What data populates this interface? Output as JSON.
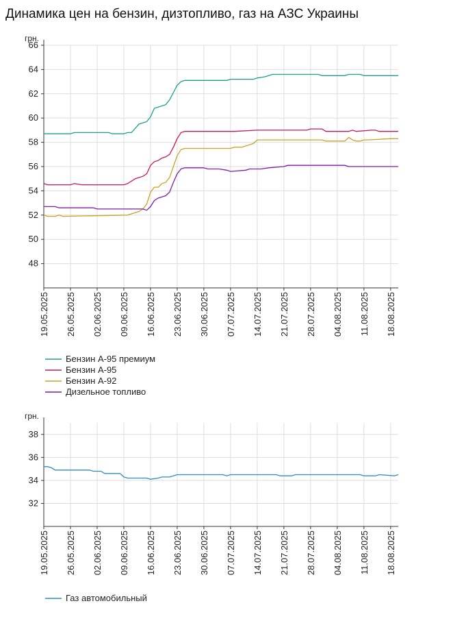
{
  "title": "Динамика цен на бензин, дизтопливо, газ на АЗС Украины",
  "chart_data": [
    {
      "type": "line",
      "ylabel": "грн.",
      "ylim": [
        46,
        66
      ],
      "yticks": [
        48,
        50,
        52,
        54,
        56,
        58,
        60,
        62,
        64,
        66
      ],
      "x_range": [
        "2025-05-19",
        "2025-08-20"
      ],
      "xticks": [
        "19.05.2025",
        "26.05.2025",
        "02.06.2025",
        "09.06.2025",
        "16.06.2025",
        "23.06.2025",
        "30.06.2025",
        "07.07.2025",
        "14.07.2025",
        "21.07.2025",
        "28.07.2025",
        "04.08.2025",
        "11.08.2025",
        "18.08.2025"
      ],
      "grid": true,
      "legend_position": "bottom-left",
      "series": [
        {
          "name": "Бензин А-95 премиум",
          "color": "#1a9e8c",
          "x": [
            "2025-05-19",
            "2025-05-26",
            "2025-05-27",
            "2025-06-05",
            "2025-06-06",
            "2025-06-09",
            "2025-06-10",
            "2025-06-11",
            "2025-06-13",
            "2025-06-14",
            "2025-06-15",
            "2025-06-16",
            "2025-06-17",
            "2025-06-18",
            "2025-06-19",
            "2025-06-20",
            "2025-06-21",
            "2025-06-22",
            "2025-06-23",
            "2025-06-24",
            "2025-06-25",
            "2025-07-06",
            "2025-07-07",
            "2025-07-13",
            "2025-07-14",
            "2025-07-16",
            "2025-07-18",
            "2025-07-30",
            "2025-07-31",
            "2025-08-06",
            "2025-08-07",
            "2025-08-10",
            "2025-08-11",
            "2025-08-20"
          ],
          "values": [
            58.7,
            58.7,
            58.8,
            58.8,
            58.7,
            58.7,
            58.8,
            58.8,
            59.5,
            59.6,
            59.7,
            60.1,
            60.8,
            60.9,
            61.0,
            61.1,
            61.5,
            62.1,
            62.7,
            63.0,
            63.1,
            63.1,
            63.2,
            63.2,
            63.3,
            63.4,
            63.6,
            63.6,
            63.5,
            63.5,
            63.6,
            63.6,
            63.5,
            63.5
          ]
        },
        {
          "name": "Бензин А-95",
          "color": "#c2185b",
          "x": [
            "2025-05-19",
            "2025-05-20",
            "2025-05-26",
            "2025-05-27",
            "2025-05-29",
            "2025-06-09",
            "2025-06-10",
            "2025-06-12",
            "2025-06-14",
            "2025-06-15",
            "2025-06-16",
            "2025-06-17",
            "2025-06-18",
            "2025-06-19",
            "2025-06-20",
            "2025-06-21",
            "2025-06-22",
            "2025-06-23",
            "2025-06-24",
            "2025-06-25",
            "2025-07-07",
            "2025-07-08",
            "2025-07-14",
            "2025-07-27",
            "2025-07-28",
            "2025-07-31",
            "2025-08-01",
            "2025-08-07",
            "2025-08-08",
            "2025-08-09",
            "2025-08-13",
            "2025-08-14",
            "2025-08-15",
            "2025-08-20"
          ],
          "values": [
            54.6,
            54.5,
            54.5,
            54.6,
            54.5,
            54.5,
            54.6,
            55.0,
            55.2,
            55.4,
            56.1,
            56.4,
            56.5,
            56.7,
            56.8,
            57.0,
            57.6,
            58.3,
            58.8,
            58.9,
            58.9,
            58.9,
            59.0,
            59.0,
            59.1,
            59.1,
            58.9,
            58.9,
            59.0,
            58.9,
            59.0,
            59.0,
            58.9,
            58.9
          ]
        },
        {
          "name": "Бензин А-92",
          "color": "#c9a227",
          "x": [
            "2025-05-19",
            "2025-05-20",
            "2025-05-22",
            "2025-05-23",
            "2025-05-24",
            "2025-06-10",
            "2025-06-11",
            "2025-06-13",
            "2025-06-14",
            "2025-06-15",
            "2025-06-16",
            "2025-06-17",
            "2025-06-18",
            "2025-06-19",
            "2025-06-20",
            "2025-06-21",
            "2025-06-22",
            "2025-06-23",
            "2025-06-24",
            "2025-06-25",
            "2025-07-02",
            "2025-07-03",
            "2025-07-07",
            "2025-07-08",
            "2025-07-10",
            "2025-07-13",
            "2025-07-14",
            "2025-07-31",
            "2025-08-01",
            "2025-08-06",
            "2025-08-07",
            "2025-08-08",
            "2025-08-09",
            "2025-08-10",
            "2025-08-11",
            "2025-08-12",
            "2025-08-18",
            "2025-08-20"
          ],
          "values": [
            52.0,
            51.9,
            51.9,
            52.0,
            51.9,
            52.0,
            52.1,
            52.3,
            52.5,
            52.9,
            53.9,
            54.3,
            54.3,
            54.6,
            54.7,
            55.1,
            56.0,
            56.9,
            57.4,
            57.5,
            57.5,
            57.5,
            57.5,
            57.6,
            57.6,
            57.9,
            58.2,
            58.2,
            58.1,
            58.1,
            58.4,
            58.2,
            58.1,
            58.1,
            58.2,
            58.2,
            58.3,
            58.3
          ]
        },
        {
          "name": "Дизельное топливо",
          "color": "#7b1fa2",
          "x": [
            "2025-05-19",
            "2025-05-22",
            "2025-05-23",
            "2025-06-01",
            "2025-06-02",
            "2025-06-05",
            "2025-06-06",
            "2025-06-14",
            "2025-06-15",
            "2025-06-16",
            "2025-06-17",
            "2025-06-18",
            "2025-06-19",
            "2025-06-20",
            "2025-06-21",
            "2025-06-22",
            "2025-06-23",
            "2025-06-24",
            "2025-06-25",
            "2025-06-30",
            "2025-07-01",
            "2025-07-04",
            "2025-07-06",
            "2025-07-07",
            "2025-07-11",
            "2025-07-12",
            "2025-07-15",
            "2025-07-17",
            "2025-07-21",
            "2025-07-22",
            "2025-08-05",
            "2025-08-06",
            "2025-08-07",
            "2025-08-20"
          ],
          "values": [
            52.7,
            52.7,
            52.6,
            52.6,
            52.5,
            52.5,
            52.5,
            52.5,
            52.4,
            52.7,
            53.2,
            53.4,
            53.5,
            53.6,
            53.9,
            54.7,
            55.4,
            55.8,
            55.9,
            55.9,
            55.8,
            55.8,
            55.7,
            55.6,
            55.7,
            55.8,
            55.8,
            55.9,
            56.0,
            56.1,
            56.1,
            56.1,
            56.0,
            56.0
          ]
        }
      ]
    },
    {
      "type": "line",
      "ylabel": "грн.",
      "ylim": [
        30,
        39
      ],
      "yticks": [
        32,
        34,
        36,
        38
      ],
      "x_range": [
        "2025-05-19",
        "2025-08-20"
      ],
      "xticks": [
        "19.05.2025",
        "26.05.2025",
        "02.06.2025",
        "09.06.2025",
        "16.06.2025",
        "23.06.2025",
        "30.06.2025",
        "07.07.2025",
        "14.07.2025",
        "21.07.2025",
        "28.07.2025",
        "04.08.2025",
        "11.08.2025",
        "18.08.2025"
      ],
      "grid": true,
      "legend_position": "bottom-left",
      "series": [
        {
          "name": "Газ автомобильный",
          "color": "#2e8bc0",
          "x": [
            "2025-05-19",
            "2025-05-20",
            "2025-05-21",
            "2025-05-22",
            "2025-05-25",
            "2025-05-26",
            "2025-05-31",
            "2025-06-01",
            "2025-06-03",
            "2025-06-04",
            "2025-06-08",
            "2025-06-09",
            "2025-06-10",
            "2025-06-15",
            "2025-06-16",
            "2025-06-18",
            "2025-06-19",
            "2025-06-21",
            "2025-06-22",
            "2025-06-23",
            "2025-07-05",
            "2025-07-06",
            "2025-07-07",
            "2025-07-19",
            "2025-07-20",
            "2025-07-23",
            "2025-07-24",
            "2025-08-10",
            "2025-08-11",
            "2025-08-14",
            "2025-08-15",
            "2025-08-19",
            "2025-08-20"
          ],
          "values": [
            35.2,
            35.2,
            35.1,
            34.9,
            34.9,
            34.9,
            34.9,
            34.8,
            34.8,
            34.6,
            34.6,
            34.3,
            34.2,
            34.2,
            34.1,
            34.2,
            34.3,
            34.3,
            34.4,
            34.5,
            34.5,
            34.4,
            34.5,
            34.5,
            34.4,
            34.4,
            34.5,
            34.5,
            34.4,
            34.4,
            34.5,
            34.4,
            34.5
          ]
        }
      ]
    }
  ]
}
